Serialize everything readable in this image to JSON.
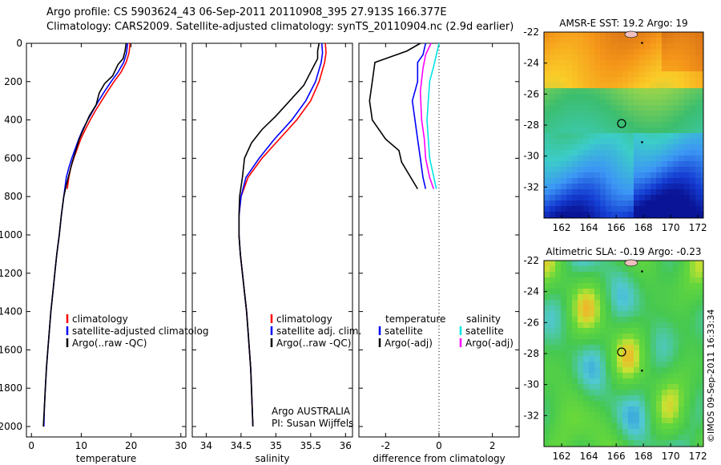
{
  "header": {
    "title_line1": "Argo profile: CS 5903624_43 06-Sep-2011 20110908_395 27.913S 166.377E",
    "title_line2": "Climatology: CARS2009. Satellite-adjusted climatology: synTS_20110904.nc (2.9d earlier)"
  },
  "colors": {
    "climatology": "#ff0000",
    "satellite": "#0000ff",
    "argo": "#000000",
    "satellite_salinity": "#00e5e5",
    "argo_adj_salinity": "#ff00ff"
  },
  "chart_data": [
    {
      "type": "line",
      "id": "temperature",
      "xlabel": "temperature",
      "xlim": [
        -1,
        31
      ],
      "ylim": [
        0,
        2050
      ],
      "y_reversed": true,
      "xticks": [
        0,
        10,
        20,
        30
      ],
      "yticks": [
        0,
        200,
        400,
        600,
        800,
        1000,
        1200,
        1400,
        1600,
        1800,
        2000
      ],
      "legend": [
        "climatology",
        "satellite-adjusted climatology",
        "Argo(..raw -QC)"
      ],
      "series": [
        {
          "name": "climatology",
          "color": "#ff0000",
          "points": [
            [
              19.8,
              0
            ],
            [
              19.6,
              50
            ],
            [
              19.0,
              100
            ],
            [
              18.0,
              150
            ],
            [
              16.6,
              200
            ],
            [
              15.3,
              250
            ],
            [
              14.1,
              300
            ],
            [
              12.9,
              350
            ],
            [
              11.8,
              400
            ],
            [
              10.8,
              450
            ],
            [
              9.9,
              500
            ],
            [
              9.2,
              550
            ],
            [
              8.5,
              600
            ],
            [
              7.9,
              650
            ],
            [
              7.5,
              700
            ],
            [
              7.2,
              760
            ]
          ]
        },
        {
          "name": "satellite-adjusted climatology",
          "color": "#0000ff",
          "points": [
            [
              19.3,
              0
            ],
            [
              19.1,
              50
            ],
            [
              18.5,
              100
            ],
            [
              17.4,
              150
            ],
            [
              16.0,
              200
            ],
            [
              14.7,
              250
            ],
            [
              13.5,
              300
            ],
            [
              12.4,
              350
            ],
            [
              11.3,
              400
            ],
            [
              10.3,
              450
            ],
            [
              9.5,
              500
            ],
            [
              8.8,
              550
            ],
            [
              8.1,
              600
            ],
            [
              7.5,
              650
            ],
            [
              7.0,
              700
            ],
            [
              6.5,
              800
            ],
            [
              6.0,
              900
            ],
            [
              5.6,
              1000
            ],
            [
              5.1,
              1100
            ],
            [
              4.7,
              1200
            ],
            [
              4.3,
              1300
            ],
            [
              3.9,
              1400
            ],
            [
              3.6,
              1500
            ],
            [
              3.3,
              1600
            ],
            [
              3.0,
              1700
            ],
            [
              2.8,
              1800
            ],
            [
              2.6,
              1900
            ],
            [
              2.5,
              2000
            ]
          ]
        },
        {
          "name": "Argo(..raw -QC)",
          "color": "#000000",
          "points": [
            [
              19.0,
              0
            ],
            [
              18.8,
              40
            ],
            [
              18.4,
              80
            ],
            [
              17.4,
              110
            ],
            [
              16.3,
              170
            ],
            [
              14.7,
              210
            ],
            [
              13.6,
              260
            ],
            [
              13.0,
              320
            ],
            [
              11.6,
              380
            ],
            [
              10.6,
              440
            ],
            [
              9.6,
              500
            ],
            [
              8.9,
              560
            ],
            [
              8.2,
              620
            ],
            [
              7.6,
              680
            ],
            [
              7.0,
              740
            ],
            [
              6.5,
              800
            ],
            [
              6.0,
              900
            ],
            [
              5.6,
              1000
            ],
            [
              5.1,
              1100
            ],
            [
              4.7,
              1200
            ],
            [
              4.3,
              1300
            ],
            [
              3.9,
              1400
            ],
            [
              3.6,
              1500
            ],
            [
              3.3,
              1600
            ],
            [
              3.0,
              1700
            ],
            [
              2.8,
              1800
            ],
            [
              2.6,
              1900
            ],
            [
              2.4,
              2000
            ]
          ]
        }
      ]
    },
    {
      "type": "line",
      "id": "salinity",
      "xlabel": "salinity",
      "xlim": [
        33.8,
        36.1
      ],
      "ylim": [
        0,
        2050
      ],
      "y_reversed": true,
      "xticks": [
        34,
        34.5,
        35,
        35.5,
        36
      ],
      "legend": [
        "climatology",
        "satellite adj. clim.",
        "Argo(..raw -QC)"
      ],
      "annotation": [
        "Argo AUSTRALIA",
        "PI: Susan Wijffels"
      ],
      "series": [
        {
          "name": "climatology",
          "color": "#ff0000",
          "points": [
            [
              35.71,
              0
            ],
            [
              35.72,
              50
            ],
            [
              35.7,
              100
            ],
            [
              35.62,
              200
            ],
            [
              35.5,
              300
            ],
            [
              35.3,
              400
            ],
            [
              35.05,
              500
            ],
            [
              34.8,
              600
            ],
            [
              34.6,
              700
            ],
            [
              34.5,
              800
            ],
            [
              34.47,
              900
            ],
            [
              34.47,
              1000
            ],
            [
              34.49,
              1100
            ],
            [
              34.52,
              1200
            ],
            [
              34.55,
              1300
            ],
            [
              34.58,
              1400
            ],
            [
              34.6,
              1500
            ],
            [
              34.62,
              1600
            ],
            [
              34.64,
              1700
            ],
            [
              34.65,
              1800
            ],
            [
              34.66,
              1900
            ],
            [
              34.67,
              2000
            ]
          ]
        },
        {
          "name": "satellite adj. clim.",
          "color": "#0000ff",
          "points": [
            [
              35.66,
              0
            ],
            [
              35.67,
              50
            ],
            [
              35.65,
              100
            ],
            [
              35.57,
              200
            ],
            [
              35.43,
              300
            ],
            [
              35.23,
              400
            ],
            [
              34.98,
              500
            ],
            [
              34.76,
              600
            ],
            [
              34.57,
              700
            ],
            [
              34.5,
              800
            ],
            [
              34.47,
              900
            ],
            [
              34.47,
              1000
            ],
            [
              34.49,
              1100
            ],
            [
              34.52,
              1200
            ],
            [
              34.55,
              1300
            ],
            [
              34.58,
              1400
            ],
            [
              34.6,
              1500
            ],
            [
              34.62,
              1600
            ],
            [
              34.64,
              1700
            ],
            [
              34.65,
              1800
            ],
            [
              34.66,
              1900
            ],
            [
              34.67,
              2000
            ]
          ]
        },
        {
          "name": "Argo(..raw -QC)",
          "color": "#000000",
          "points": [
            [
              35.62,
              0
            ],
            [
              35.6,
              40
            ],
            [
              35.6,
              80
            ],
            [
              35.5,
              150
            ],
            [
              35.4,
              220
            ],
            [
              35.2,
              300
            ],
            [
              35.0,
              380
            ],
            [
              34.8,
              450
            ],
            [
              34.65,
              520
            ],
            [
              34.55,
              600
            ],
            [
              34.52,
              700
            ],
            [
              34.48,
              800
            ],
            [
              34.47,
              900
            ],
            [
              34.47,
              1000
            ],
            [
              34.49,
              1100
            ],
            [
              34.52,
              1200
            ],
            [
              34.55,
              1300
            ],
            [
              34.58,
              1400
            ],
            [
              34.6,
              1500
            ],
            [
              34.62,
              1600
            ],
            [
              34.64,
              1700
            ],
            [
              34.65,
              1800
            ],
            [
              34.66,
              1900
            ],
            [
              34.67,
              2000
            ]
          ]
        }
      ]
    },
    {
      "type": "line",
      "id": "difference",
      "xlabel": "difference from climatology",
      "xlim": [
        -3,
        3
      ],
      "ylim": [
        0,
        2050
      ],
      "y_reversed": true,
      "xticks": [
        -2,
        0,
        2
      ],
      "zero_line": true,
      "legend_left": [
        "temperature",
        "satellite",
        "Argo(-adj)"
      ],
      "legend_right": [
        "salinity",
        "satellite",
        "Argo(-adj)"
      ],
      "series": [
        {
          "name": "temperature satellite",
          "color": "#0000ff",
          "points": [
            [
              -0.5,
              0
            ],
            [
              -0.6,
              60
            ],
            [
              -0.8,
              100
            ],
            [
              -0.8,
              200
            ],
            [
              -1.0,
              300
            ],
            [
              -0.9,
              400
            ],
            [
              -0.8,
              500
            ],
            [
              -0.7,
              600
            ],
            [
              -0.6,
              700
            ],
            [
              -0.5,
              760
            ]
          ]
        },
        {
          "name": "temperature Argo(-adj)",
          "color": "#000000",
          "points": [
            [
              -0.7,
              0
            ],
            [
              -1.2,
              40
            ],
            [
              -1.8,
              70
            ],
            [
              -2.4,
              100
            ],
            [
              -2.5,
              200
            ],
            [
              -2.6,
              300
            ],
            [
              -2.5,
              400
            ],
            [
              -2.0,
              500
            ],
            [
              -1.5,
              560
            ],
            [
              -1.4,
              620
            ],
            [
              -1.1,
              690
            ],
            [
              -0.8,
              760
            ]
          ]
        },
        {
          "name": "salinity satellite",
          "color": "#00e5e5",
          "points": [
            [
              0.0,
              0
            ],
            [
              -0.1,
              60
            ],
            [
              -0.2,
              120
            ],
            [
              -0.35,
              200
            ],
            [
              -0.45,
              400
            ],
            [
              -0.35,
              600
            ],
            [
              -0.1,
              760
            ]
          ]
        },
        {
          "name": "salinity Argo(-adj)",
          "color": "#ff00ff",
          "points": [
            [
              -0.3,
              0
            ],
            [
              -0.5,
              60
            ],
            [
              -0.6,
              130
            ],
            [
              -0.7,
              250
            ],
            [
              -0.65,
              400
            ],
            [
              -0.55,
              500
            ],
            [
              -0.5,
              600
            ],
            [
              -0.35,
              700
            ],
            [
              -0.2,
              760
            ]
          ]
        }
      ]
    },
    {
      "type": "heatmap",
      "id": "sst",
      "title": "AMSR-E SST: 19.2 Argo: 19",
      "xticks": [
        162,
        164,
        166,
        168,
        170,
        172
      ],
      "yticks": [
        -22,
        -24,
        -26,
        -28,
        -30,
        -32
      ],
      "marker": [
        166.4,
        -27.9
      ]
    },
    {
      "type": "heatmap",
      "id": "sla",
      "title": "Altimetric SLA: -0.19 Argo: -0.23",
      "xticks": [
        162,
        164,
        166,
        168,
        170,
        172
      ],
      "yticks": [
        -22,
        -24,
        -26,
        -28,
        -30,
        -32
      ],
      "marker": [
        166.4,
        -27.9
      ]
    }
  ],
  "labels": {
    "temp_legend": [
      "climatology",
      "satellite-adjusted climatolog",
      "Argo(..raw -QC)"
    ],
    "sal_legend": [
      "climatology",
      "satellite adj. clim.",
      "Argo(..raw -QC)"
    ],
    "credit_line1": "Argo AUSTRALIA",
    "credit_line2": "PI: Susan Wijffels",
    "diff_temp_header": "temperature",
    "diff_sal_header": "salinity",
    "diff_sat": "satellite",
    "diff_argo": "Argo(-adj)",
    "watermark": "©IMOS 09-Sep-2011 16:33:34"
  }
}
